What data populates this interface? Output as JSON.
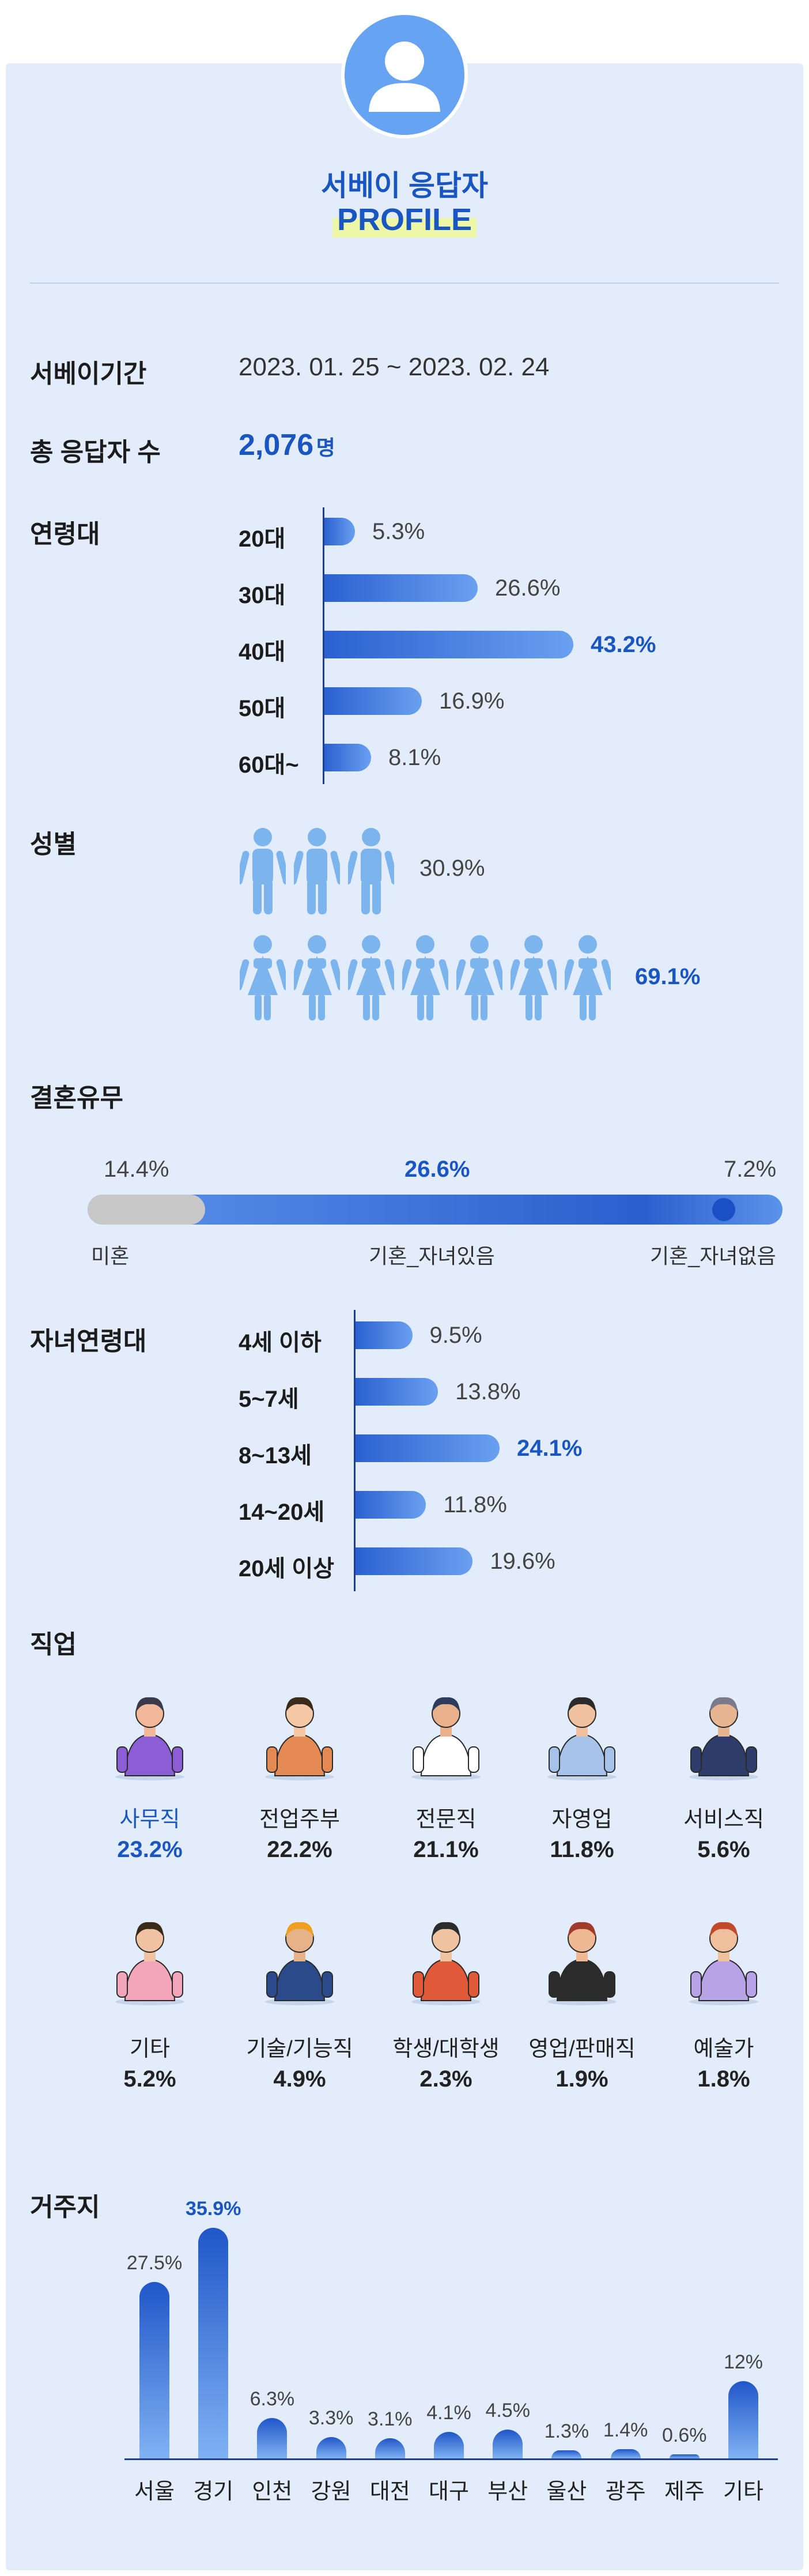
{
  "header": {
    "title": "서베이 응답자",
    "subtitle": "PROFILE"
  },
  "survey_period": {
    "label": "서베이기간",
    "value": "2023. 01. 25 ~ 2023. 02. 24"
  },
  "respondents": {
    "label": "총 응답자 수",
    "value": "2,076",
    "unit": "명"
  },
  "colors": {
    "accent": "#1a56c2",
    "bar": "#4a86e8",
    "panel": "#e3ecfa",
    "avatar": "#66a4f3",
    "person": "#7cb4ee",
    "highlight": "#eef7a5",
    "unmarried": "#c8c8c8"
  },
  "age": {
    "label": "연령대",
    "highlight_index": 2
  },
  "gender": {
    "label": "성별",
    "male_pct": "30.9%",
    "female_pct": "69.1%",
    "male_icons": 3,
    "female_icons": 7
  },
  "marriage": {
    "label": "결혼유무",
    "unmarried_pct": "14.4%",
    "married_kids_pct": "26.6%",
    "married_nokids_pct": "7.2%",
    "unmarried_label": "미혼",
    "married_kids_label": "기혼_자녀있음",
    "married_nokids_label": "기혼_자녀없음"
  },
  "children_age": {
    "label": "자녀연령대",
    "highlight_index": 2
  },
  "jobs": {
    "label": "직업",
    "items": [
      {
        "name": "사무직",
        "pct": "23.2%",
        "icon": "office-worker-illustration",
        "highlight": true
      },
      {
        "name": "전업주부",
        "pct": "22.2%",
        "icon": "homemaker-illustration",
        "highlight": false
      },
      {
        "name": "전문직",
        "pct": "21.1%",
        "icon": "doctor-illustration",
        "highlight": false
      },
      {
        "name": "자영업",
        "pct": "11.8%",
        "icon": "shop-owner-illustration",
        "highlight": false
      },
      {
        "name": "서비스직",
        "pct": "5.6%",
        "icon": "call-center-illustration",
        "highlight": false
      },
      {
        "name": "기타",
        "pct": "5.2%",
        "icon": "pet-owner-illustration",
        "highlight": false
      },
      {
        "name": "기술/기능직",
        "pct": "4.9%",
        "icon": "technician-illustration",
        "highlight": false
      },
      {
        "name": "학생/대학생",
        "pct": "2.3%",
        "icon": "student-illustration",
        "highlight": false
      },
      {
        "name": "영업/판매직",
        "pct": "1.9%",
        "icon": "salesperson-illustration",
        "highlight": false
      },
      {
        "name": "예술가",
        "pct": "1.8%",
        "icon": "guitarist-illustration",
        "highlight": false
      }
    ]
  },
  "residence": {
    "label": "거주지",
    "highlight_index": 1
  },
  "chart_data": [
    {
      "type": "bar",
      "orientation": "horizontal",
      "title": "연령대",
      "categories": [
        "20대",
        "30대",
        "40대",
        "50대",
        "60대~"
      ],
      "values": [
        5.3,
        26.6,
        43.2,
        16.9,
        8.1
      ],
      "value_labels": [
        "5.3%",
        "26.6%",
        "43.2%",
        "16.9%",
        "8.1%"
      ],
      "xlim": [
        0,
        43.2
      ]
    },
    {
      "type": "bar",
      "orientation": "horizontal",
      "title": "자녀연령대",
      "categories": [
        "4세 이하",
        "5~7세",
        "8~13세",
        "14~20세",
        "20세 이상"
      ],
      "values": [
        9.5,
        13.8,
        24.1,
        11.8,
        19.6
      ],
      "value_labels": [
        "9.5%",
        "13.8%",
        "24.1%",
        "11.8%",
        "19.6%"
      ],
      "xlim": [
        0,
        24.1
      ]
    },
    {
      "type": "bar",
      "orientation": "vertical",
      "title": "거주지",
      "categories": [
        "서울",
        "경기",
        "인천",
        "강원",
        "대전",
        "대구",
        "부산",
        "울산",
        "광주",
        "제주",
        "기타"
      ],
      "values": [
        27.5,
        35.9,
        6.3,
        3.3,
        3.1,
        4.1,
        4.5,
        1.3,
        1.4,
        0.6,
        12
      ],
      "value_labels": [
        "27.5%",
        "35.9%",
        "6.3%",
        "3.3%",
        "3.1%",
        "4.1%",
        "4.5%",
        "1.3%",
        "1.4%",
        "0.6%",
        "12%"
      ],
      "ylim": [
        0,
        35.9
      ]
    }
  ]
}
